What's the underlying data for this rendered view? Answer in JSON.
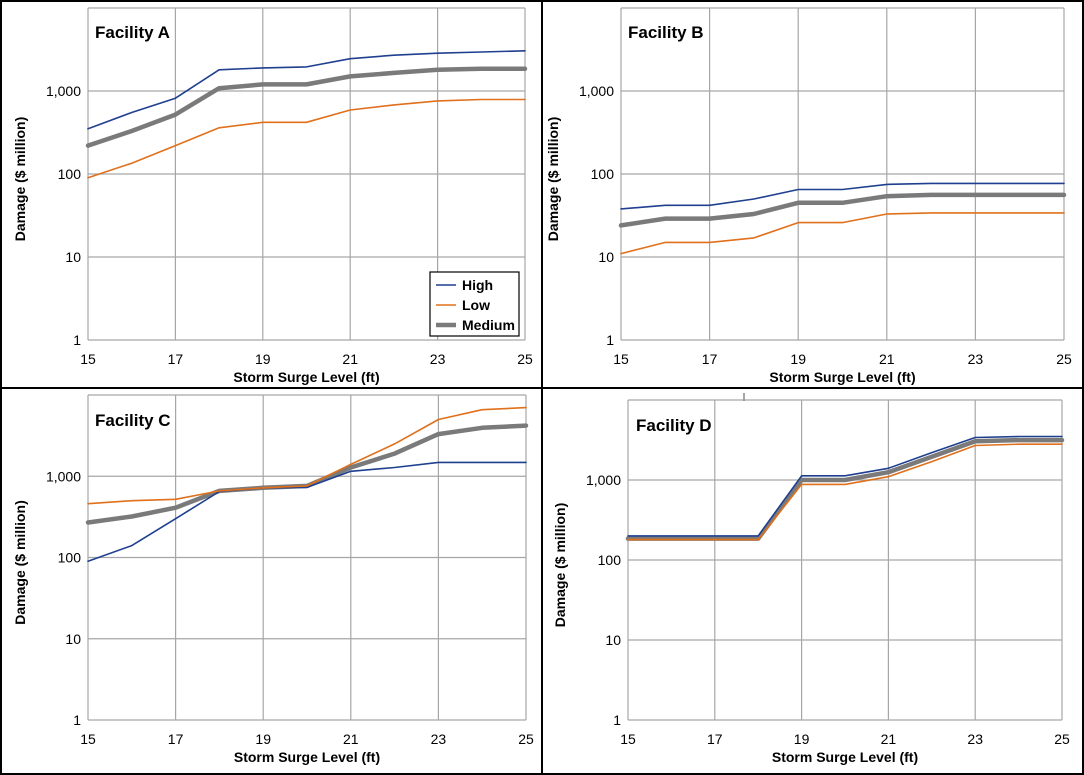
{
  "colors": {
    "high": "#1f3f8f",
    "low": "#e0701c",
    "medium": "#7a7a7a",
    "grid": "#a6a6a6",
    "border": "#000000"
  },
  "legend": {
    "high": "High",
    "low": "Low",
    "medium": "Medium"
  },
  "chart_data": [
    {
      "type": "line",
      "title": "Facility A",
      "xlabel": "Storm Surge Level (ft)",
      "ylabel": "Damage ($ million)",
      "yscale": "log",
      "xlim": [
        15,
        25
      ],
      "ylim": [
        1,
        10000
      ],
      "xticks": [
        "15",
        "17",
        "19",
        "21",
        "23",
        "25"
      ],
      "yticks": [
        "1",
        "10",
        "100",
        "1,000"
      ],
      "legend": true,
      "x": [
        15,
        16,
        17,
        18,
        19,
        20,
        21,
        22,
        23,
        24,
        25
      ],
      "series": [
        {
          "name": "High",
          "values": [
            350,
            550,
            820,
            1800,
            1900,
            1950,
            2450,
            2700,
            2850,
            2950,
            3050
          ]
        },
        {
          "name": "Low",
          "values": [
            90,
            135,
            220,
            360,
            420,
            420,
            590,
            680,
            760,
            790,
            790
          ]
        },
        {
          "name": "Medium",
          "values": [
            220,
            330,
            520,
            1080,
            1200,
            1200,
            1500,
            1650,
            1800,
            1850,
            1850
          ]
        }
      ]
    },
    {
      "type": "line",
      "title": "Facility B",
      "xlabel": "Storm Surge Level (ft)",
      "ylabel": "Damage ($ million)",
      "yscale": "log",
      "xlim": [
        15,
        25
      ],
      "ylim": [
        1,
        10000
      ],
      "xticks": [
        "15",
        "17",
        "19",
        "21",
        "23",
        "25"
      ],
      "yticks": [
        "1",
        "10",
        "100",
        "1,000"
      ],
      "legend": false,
      "x": [
        15,
        16,
        17,
        18,
        19,
        20,
        21,
        22,
        23,
        24,
        25
      ],
      "series": [
        {
          "name": "High",
          "values": [
            38,
            42,
            42,
            50,
            65,
            65,
            75,
            77,
            77,
            77,
            77
          ]
        },
        {
          "name": "Low",
          "values": [
            11,
            15,
            15,
            17,
            26,
            26,
            33,
            34,
            34,
            34,
            34
          ]
        },
        {
          "name": "Medium",
          "values": [
            24,
            29,
            29,
            33,
            45,
            45,
            54,
            56,
            56,
            56,
            56
          ]
        }
      ]
    },
    {
      "type": "line",
      "title": "Facility C",
      "xlabel": "Storm Surge Level (ft)",
      "ylabel": "Damage ($ million)",
      "yscale": "log",
      "xlim": [
        15,
        25
      ],
      "ylim": [
        1,
        10000
      ],
      "xticks": [
        "15",
        "17",
        "19",
        "21",
        "23",
        "25"
      ],
      "yticks": [
        "1",
        "10",
        "100",
        "1,000"
      ],
      "legend": false,
      "x": [
        15,
        16,
        17,
        18,
        19,
        20,
        21,
        22,
        23,
        24,
        25
      ],
      "series": [
        {
          "name": "High",
          "values": [
            90,
            140,
            300,
            650,
            720,
            730,
            1150,
            1280,
            1480,
            1480,
            1480
          ]
        },
        {
          "name": "Low",
          "values": [
            460,
            500,
            520,
            660,
            720,
            760,
            1400,
            2500,
            5000,
            6600,
            7000
          ]
        },
        {
          "name": "Medium",
          "values": [
            270,
            320,
            410,
            660,
            720,
            760,
            1280,
            1900,
            3300,
            3950,
            4200
          ]
        }
      ]
    },
    {
      "type": "line",
      "title": "Facility D",
      "xlabel": "Storm Surge Level (ft)",
      "ylabel": "Damage ($ million)",
      "yscale": "log",
      "xlim": [
        15,
        25
      ],
      "ylim": [
        1,
        10000
      ],
      "xticks": [
        "15",
        "17",
        "19",
        "21",
        "23",
        "25"
      ],
      "yticks": [
        "1",
        "10",
        "100",
        "1,000"
      ],
      "legend": false,
      "x": [
        15,
        16,
        17,
        18,
        19,
        20,
        21,
        22,
        23,
        24,
        25
      ],
      "series": [
        {
          "name": "High",
          "values": [
            200,
            200,
            200,
            200,
            1130,
            1130,
            1400,
            2200,
            3400,
            3500,
            3500
          ]
        },
        {
          "name": "Low",
          "values": [
            180,
            180,
            180,
            180,
            880,
            880,
            1100,
            1700,
            2700,
            2800,
            2800
          ]
        },
        {
          "name": "Medium",
          "values": [
            185,
            185,
            185,
            185,
            1000,
            1000,
            1250,
            1950,
            3050,
            3150,
            3150
          ]
        }
      ]
    }
  ]
}
